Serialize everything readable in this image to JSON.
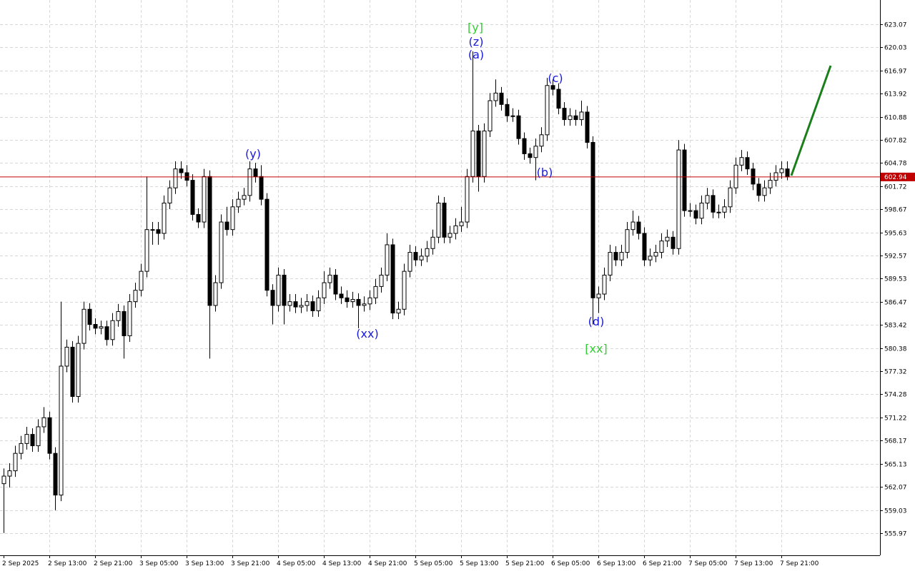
{
  "chart_data": {
    "type": "candlestick",
    "categories": [
      "2 Sep 2025",
      null,
      null,
      null,
      null,
      null,
      null,
      null,
      "2 Sep 13:00",
      null,
      null,
      null,
      null,
      null,
      null,
      null,
      "2 Sep 21:00",
      null,
      null,
      null,
      null,
      null,
      null,
      null,
      "3 Sep 05:00",
      null,
      null,
      null,
      null,
      null,
      null,
      null,
      "3 Sep 13:00",
      null,
      null,
      null,
      null,
      null,
      null,
      null,
      "3 Sep 21:00",
      null,
      null,
      null,
      null,
      null,
      null,
      null,
      "4 Sep 05:00",
      null,
      null,
      null,
      null,
      null,
      null,
      null,
      "4 Sep 13:00",
      null,
      null,
      null,
      null,
      null,
      null,
      null,
      "4 Sep 21:00",
      null,
      null,
      null,
      null,
      null,
      null,
      null,
      "5 Sep 05:00",
      null,
      null,
      null,
      null,
      null,
      null,
      null,
      "5 Sep 13:00",
      null,
      null,
      null,
      null,
      null,
      null,
      null,
      "5 Sep 21:00",
      null,
      null,
      null,
      null,
      null,
      null,
      null,
      "6 Sep 05:00",
      null,
      null,
      null,
      null,
      null,
      null,
      null,
      "6 Sep 13:00",
      null,
      null,
      null,
      null,
      null,
      null,
      null,
      "6 Sep 21:00",
      null,
      null,
      null,
      null,
      null,
      null,
      null,
      "7 Sep 05:00",
      null,
      null,
      null,
      null,
      null,
      null,
      null,
      "7 Sep 13:00",
      null,
      null,
      null,
      null,
      null,
      null,
      null,
      "7 Sep 21:00",
      null
    ],
    "open": [
      562.5,
      563.5,
      564.2,
      566.5,
      567.8,
      569.0,
      567.5,
      570.0,
      571.2,
      566.5,
      561.0,
      578.0,
      580.5,
      574.0,
      581.0,
      585.5,
      583.5,
      583.0,
      583.2,
      581.5,
      584.0,
      585.2,
      582.0,
      586.5,
      588.0,
      590.5,
      596.0,
      596.0,
      595.5,
      599.5,
      601.5,
      604.0,
      603.5,
      602.5,
      598.0,
      597.0,
      603.0,
      586.0,
      589.0,
      597.0,
      596.0,
      599.0,
      600.0,
      600.5,
      604.0,
      603.0,
      600.0,
      588.0,
      586.0,
      590.0,
      586.0,
      586.5,
      585.8,
      586.0,
      586.5,
      585.3,
      587.0,
      589.0,
      590.0,
      587.5,
      587.0,
      586.5,
      586.8,
      586.0,
      586.2,
      587.0,
      588.5,
      590.0,
      594.0,
      585.0,
      585.5,
      590.5,
      593.0,
      592.0,
      592.5,
      593.5,
      595.0,
      599.5,
      595.0,
      595.5,
      596.5,
      597.0,
      603.0,
      609.0,
      603.0,
      609.0,
      613.0,
      614.0,
      612.5,
      611.0,
      611.0,
      608.0,
      606.0,
      605.5,
      607.0,
      608.5,
      615.0,
      614.5,
      612.0,
      610.5,
      611.0,
      610.5,
      611.5,
      607.5,
      587.0,
      587.5,
      590.0,
      593.0,
      592.0,
      593.0,
      596.0,
      597.0,
      595.5,
      592.0,
      592.5,
      593.0,
      594.5,
      595.0,
      593.5,
      606.5,
      598.5,
      598.5,
      597.5,
      599.5,
      600.5,
      598.3,
      598.3,
      599.0,
      601.5,
      604.5,
      605.5,
      604.0,
      602.0,
      600.5,
      601.5,
      602.5,
      603.5,
      604.0
    ],
    "high": [
      564.5,
      565.2,
      567.5,
      568.8,
      570.0,
      569.8,
      571.0,
      572.6,
      572.0,
      567.3,
      586.5,
      581.5,
      581.3,
      582.0,
      586.5,
      586.3,
      584.3,
      584.0,
      584.0,
      585.0,
      586.2,
      586.0,
      587.5,
      589.0,
      591.5,
      603.0,
      597.0,
      597.0,
      600.5,
      602.5,
      605.0,
      605.0,
      604.5,
      603.3,
      598.8,
      604.0,
      603.8,
      590.0,
      598.0,
      599.0,
      600.0,
      601.0,
      601.5,
      605.0,
      604.8,
      604.5,
      600.8,
      588.8,
      591.0,
      590.8,
      587.5,
      587.5,
      587.0,
      587.5,
      587.3,
      588.0,
      590.5,
      591.0,
      590.8,
      588.5,
      588.0,
      587.8,
      587.6,
      587.2,
      588.0,
      589.5,
      591.0,
      595.5,
      594.8,
      586.5,
      591.5,
      594.0,
      593.8,
      593.5,
      594.5,
      596.0,
      600.5,
      600.3,
      596.5,
      597.5,
      599.0,
      604.0,
      619.5,
      609.8,
      610.0,
      614.0,
      615.8,
      614.8,
      613.3,
      612.0,
      611.8,
      608.8,
      606.8,
      608.0,
      609.5,
      616.0,
      615.8,
      615.3,
      612.8,
      612.0,
      611.8,
      613.0,
      612.3,
      608.3,
      588.5,
      591.0,
      594.0,
      593.8,
      594.0,
      597.0,
      598.5,
      597.8,
      596.3,
      593.5,
      594.0,
      595.5,
      596.0,
      595.8,
      607.8,
      607.3,
      599.5,
      599.3,
      600.5,
      601.5,
      601.3,
      599.3,
      600.0,
      602.5,
      605.5,
      606.5,
      606.3,
      604.8,
      602.8,
      602.5,
      603.5,
      604.5,
      605.0,
      605.0
    ],
    "low": [
      556.0,
      562.0,
      563.4,
      565.7,
      567.0,
      566.7,
      566.7,
      569.2,
      565.7,
      559.0,
      560.2,
      577.2,
      573.2,
      573.2,
      580.2,
      582.7,
      582.2,
      582.2,
      580.7,
      580.7,
      583.2,
      579.0,
      581.2,
      585.7,
      587.2,
      589.7,
      594.0,
      594.0,
      594.7,
      598.7,
      600.7,
      602.7,
      601.7,
      597.2,
      596.2,
      596.2,
      579.0,
      585.2,
      588.2,
      595.2,
      595.2,
      598.2,
      599.2,
      599.7,
      602.2,
      599.2,
      587.2,
      583.5,
      585.2,
      583.5,
      585.2,
      585.0,
      585.0,
      585.2,
      584.5,
      584.5,
      586.2,
      588.2,
      586.7,
      586.2,
      585.7,
      585.7,
      583.0,
      585.2,
      585.4,
      586.2,
      587.7,
      589.2,
      584.2,
      584.2,
      584.7,
      589.7,
      591.2,
      591.2,
      591.7,
      592.7,
      594.2,
      594.2,
      594.2,
      594.7,
      595.7,
      596.2,
      602.2,
      601.0,
      602.2,
      608.2,
      612.2,
      611.7,
      610.2,
      610.2,
      607.2,
      605.2,
      604.7,
      602.5,
      606.2,
      607.7,
      613.7,
      611.2,
      609.7,
      609.7,
      609.7,
      609.7,
      606.7,
      583.5,
      585.0,
      586.7,
      589.2,
      591.2,
      591.2,
      592.2,
      595.2,
      594.7,
      591.2,
      591.2,
      591.7,
      592.2,
      593.7,
      592.7,
      592.7,
      597.7,
      597.7,
      596.7,
      596.7,
      598.7,
      597.5,
      597.5,
      597.5,
      598.2,
      600.7,
      603.7,
      603.2,
      601.2,
      599.7,
      599.7,
      600.7,
      601.7,
      602.7,
      602.5
    ],
    "close": [
      563.5,
      564.2,
      566.5,
      567.8,
      569.0,
      567.5,
      570.0,
      571.2,
      566.5,
      561.0,
      578.0,
      580.5,
      574.0,
      581.0,
      585.5,
      583.5,
      583.0,
      583.2,
      581.5,
      584.0,
      585.2,
      582.0,
      586.5,
      588.0,
      590.5,
      596.0,
      596.0,
      595.5,
      599.5,
      601.5,
      604.0,
      603.5,
      602.5,
      598.0,
      597.0,
      603.0,
      586.0,
      589.0,
      597.0,
      596.0,
      599.0,
      600.0,
      600.5,
      604.0,
      603.0,
      600.0,
      588.0,
      586.0,
      590.0,
      586.0,
      586.5,
      585.8,
      586.0,
      586.5,
      585.3,
      587.0,
      589.0,
      590.0,
      587.5,
      587.0,
      586.5,
      586.8,
      586.0,
      586.2,
      587.0,
      588.5,
      590.0,
      594.0,
      585.0,
      585.5,
      590.5,
      593.0,
      592.0,
      592.5,
      593.5,
      595.0,
      599.5,
      595.0,
      595.5,
      596.5,
      597.0,
      603.0,
      609.0,
      603.0,
      609.0,
      613.0,
      614.0,
      612.5,
      611.0,
      611.0,
      608.0,
      606.0,
      605.5,
      607.0,
      608.5,
      615.0,
      614.5,
      612.0,
      610.5,
      611.0,
      610.5,
      611.5,
      607.5,
      587.0,
      587.5,
      590.0,
      593.0,
      592.0,
      593.0,
      596.0,
      597.0,
      595.5,
      592.0,
      592.5,
      593.0,
      594.5,
      595.0,
      593.5,
      606.5,
      598.5,
      598.5,
      597.5,
      599.5,
      600.5,
      598.3,
      598.3,
      599.0,
      601.5,
      604.5,
      605.5,
      604.0,
      602.0,
      600.5,
      601.5,
      602.5,
      603.5,
      604.0,
      602.94
    ],
    "ylim": [
      553.06,
      626.27
    ],
    "yticks": [
      623.07,
      620.03,
      616.97,
      613.92,
      610.88,
      607.82,
      604.78,
      601.72,
      598.67,
      595.63,
      592.57,
      589.53,
      586.47,
      583.42,
      580.38,
      577.32,
      574.28,
      571.22,
      568.17,
      565.13,
      562.07,
      559.03,
      555.97
    ],
    "grid": true,
    "last_price": 602.94,
    "last_price_color": "#c00000",
    "annotations": [
      {
        "text": "[y]",
        "color": "#33cc33"
      },
      {
        "text": "(z)",
        "color": "#1a1adc"
      },
      {
        "text": "(a)",
        "color": "#1a1adc"
      },
      {
        "text": "(y)",
        "color": "#1a1adc"
      },
      {
        "text": "(c)",
        "color": "#1a1adc"
      },
      {
        "text": "(b)",
        "color": "#1a1adc"
      },
      {
        "text": "(xx)",
        "color": "#1a1adc"
      },
      {
        "text": "(d)",
        "color": "#1a1adc"
      },
      {
        "text": "[xx]",
        "color": "#33cc33"
      }
    ]
  }
}
